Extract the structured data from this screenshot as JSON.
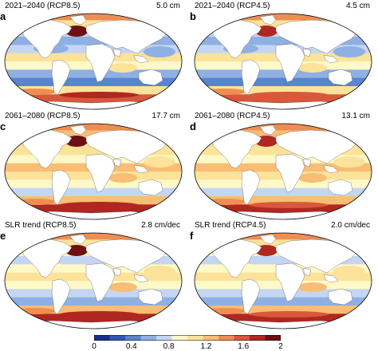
{
  "panels": [
    {
      "letter": "a",
      "title": "2021–2040 (RCP8.5)",
      "value": "5.0 cm",
      "stage": 1,
      "scenario": "RCP8.5"
    },
    {
      "letter": "b",
      "title": "2021–2040 (RCP4.5)",
      "value": "4.5 cm",
      "stage": 1,
      "scenario": "RCP4.5"
    },
    {
      "letter": "c",
      "title": "2061–2080 (RCP8.5)",
      "value": "17.7 cm",
      "stage": 2,
      "scenario": "RCP8.5"
    },
    {
      "letter": "d",
      "title": "2061–2080 (RCP4.5)",
      "value": "13.1 cm",
      "stage": 2,
      "scenario": "RCP4.5"
    },
    {
      "letter": "e",
      "title": "SLR trend (RCP8.5)",
      "value": "2.8 cm/dec",
      "stage": 3,
      "scenario": "RCP8.5"
    },
    {
      "letter": "f",
      "title": "SLR trend (RCP4.5)",
      "value": "2.0 cm/dec",
      "stage": 3,
      "scenario": "RCP4.5"
    }
  ],
  "colorbar": {
    "range": [
      0,
      2
    ],
    "ticks": [
      "0",
      "0.4",
      "0.8",
      "1.2",
      "1.6",
      "2"
    ],
    "colors": [
      "#1b2f8a",
      "#2f58b8",
      "#5a83d0",
      "#8fb0e3",
      "#c4d6f2",
      "#fff9c8",
      "#fde29a",
      "#f9bd74",
      "#ef8e52",
      "#d9573a",
      "#b02721",
      "#6e0f12"
    ]
  },
  "colors": {
    "land": "#ffffff",
    "outline": "#000000",
    "ocean_low": "#5a83d0",
    "ocean_high": "#b02721"
  }
}
